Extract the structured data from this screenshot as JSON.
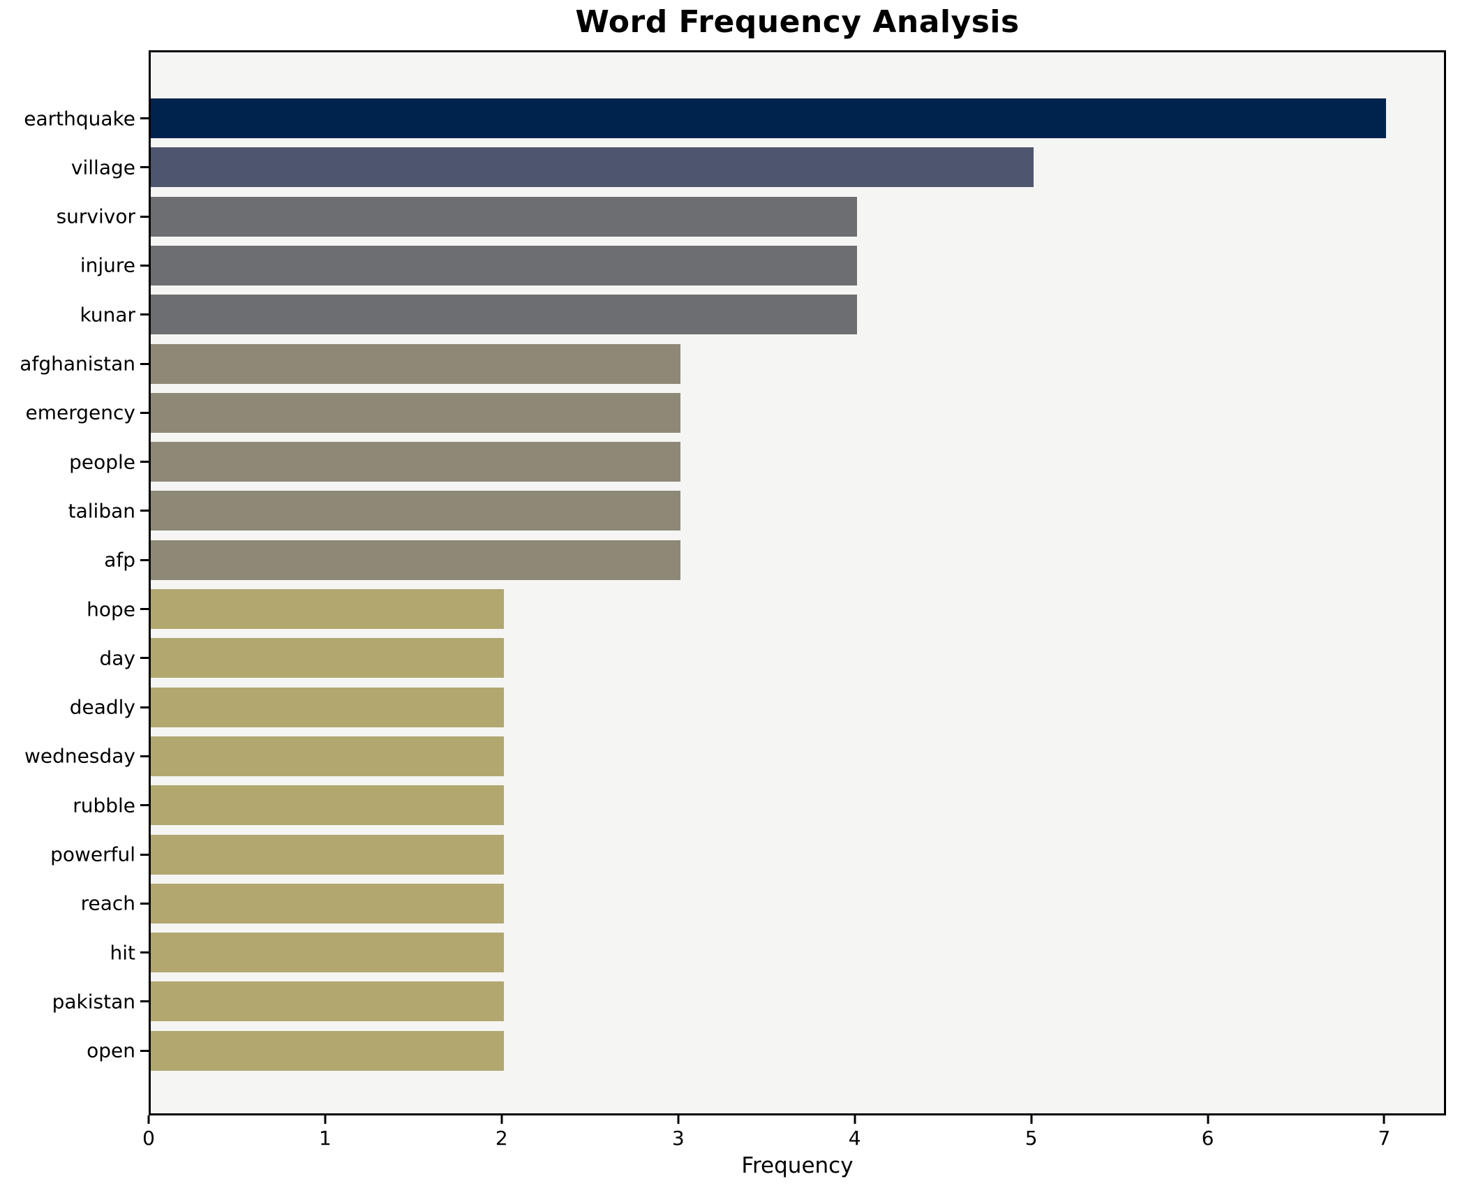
{
  "figure": {
    "title": "Word Frequency Analysis",
    "xlabel": "Frequency"
  },
  "chart_data": {
    "type": "bar",
    "orientation": "horizontal",
    "title": "Word Frequency Analysis",
    "xlabel": "Frequency",
    "ylabel": "",
    "categories": [
      "earthquake",
      "village",
      "survivor",
      "injure",
      "kunar",
      "afghanistan",
      "emergency",
      "people",
      "taliban",
      "afp",
      "hope",
      "day",
      "deadly",
      "wednesday",
      "rubble",
      "powerful",
      "reach",
      "hit",
      "pakistan",
      "open"
    ],
    "values": [
      7,
      5,
      4,
      4,
      4,
      3,
      3,
      3,
      3,
      3,
      2,
      2,
      2,
      2,
      2,
      2,
      2,
      2,
      2,
      2
    ],
    "bar_colors": [
      "#00234d",
      "#4e566e",
      "#6c6e71",
      "#6c6e71",
      "#6c6e71",
      "#8e8877",
      "#8e8877",
      "#8e8877",
      "#8e8877",
      "#8e8877",
      "#b1a76f",
      "#b1a76f",
      "#b1a76f",
      "#b1a76f",
      "#b1a76f",
      "#b1a76f",
      "#b1a76f",
      "#b1a76f",
      "#b1a76f",
      "#b1a76f"
    ],
    "xticks": [
      "0",
      "1",
      "2",
      "3",
      "4",
      "5",
      "6",
      "7"
    ],
    "xlim": [
      0,
      7.35
    ],
    "grid": false,
    "legend_position": "none",
    "plot_background": "#f5f5f3",
    "figure_background": "#ffffff",
    "spine_color": "#000000"
  }
}
